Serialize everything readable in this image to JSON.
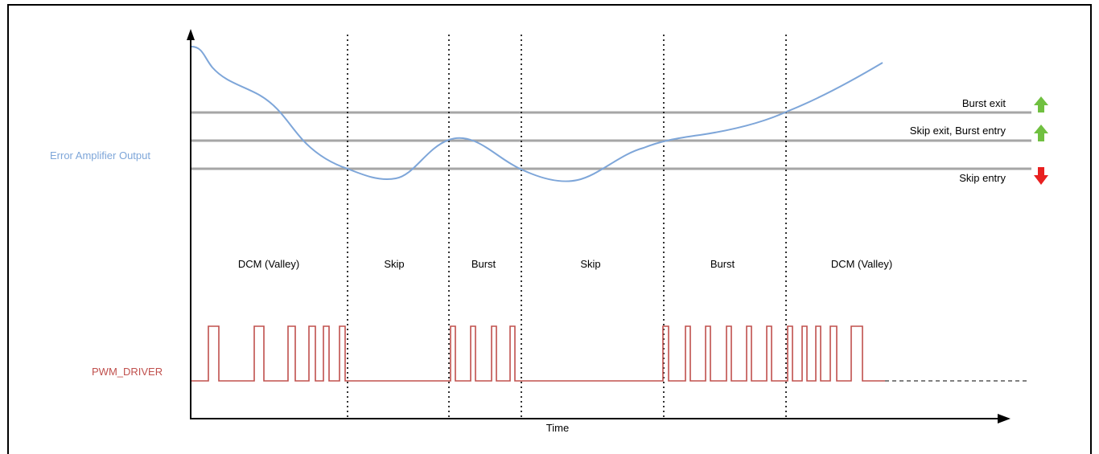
{
  "signals": {
    "error_amp_label": "Error Amplifier Output",
    "pwm_label": "PWM_DRIVER",
    "error_amp_color": "#7ea6d9",
    "pwm_color": "#c0504d"
  },
  "axis": {
    "x_label": "Time"
  },
  "thresholds": [
    {
      "label": "Burst exit",
      "arrow": "up-arrow-icon",
      "arrow_color": "#70c040"
    },
    {
      "label": "Skip exit, Burst entry",
      "arrow": "up-arrow-icon",
      "arrow_color": "#70c040"
    },
    {
      "label": "Skip entry",
      "arrow": "down-arrow-icon",
      "arrow_color": "#e82020"
    }
  ],
  "modes": [
    {
      "label": "DCM (Valley)"
    },
    {
      "label": "Skip"
    },
    {
      "label": "Burst"
    },
    {
      "label": "Skip"
    },
    {
      "label": "Burst"
    },
    {
      "label": "DCM (Valley)"
    }
  ]
}
